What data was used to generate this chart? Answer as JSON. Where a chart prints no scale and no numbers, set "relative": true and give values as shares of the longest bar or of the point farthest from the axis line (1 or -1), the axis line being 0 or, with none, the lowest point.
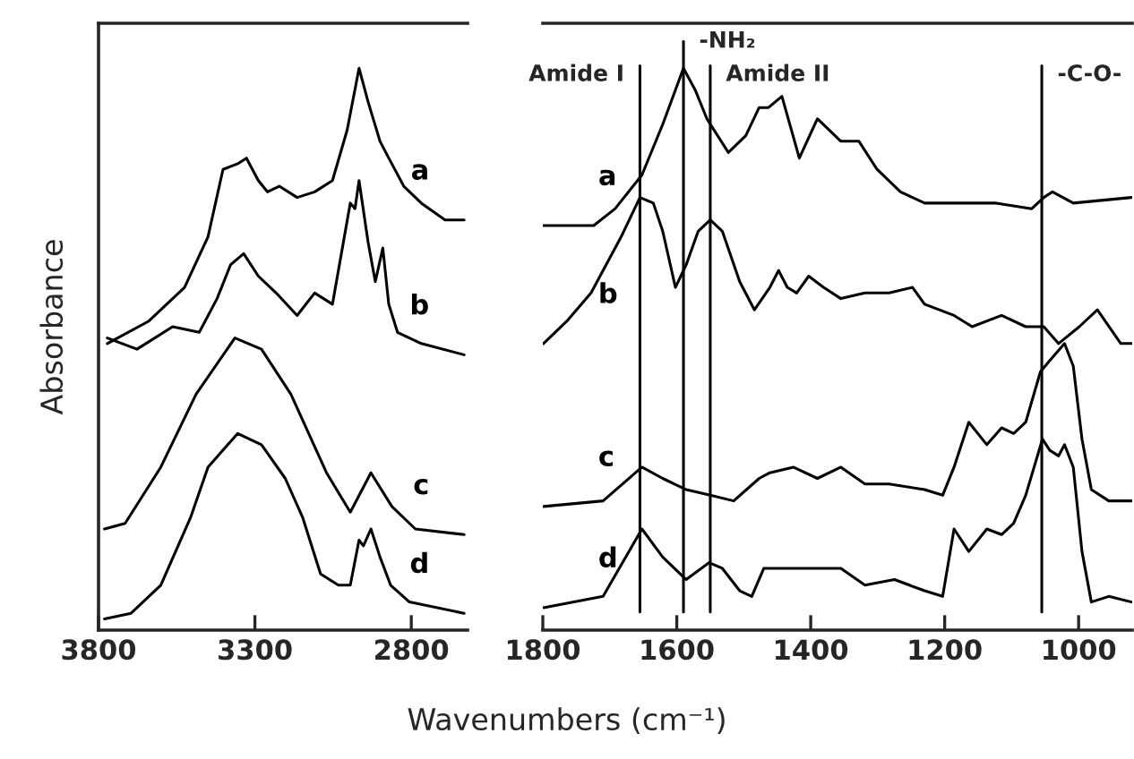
{
  "chart_data": [
    {
      "type": "line",
      "relative": true,
      "ylabel": "Absorbance",
      "xlabel": "Wavenumbers (cm⁻¹)",
      "xlim": [
        3800,
        2620
      ],
      "xticks": [
        3800,
        3300,
        2800
      ],
      "tick_labels": "x",
      "grid": false,
      "legend": false,
      "marker": "none",
      "line_style": "solid",
      "series": [
        {
          "name": "a",
          "color": "#000000",
          "x": [
            3772,
            3639,
            3525,
            3450,
            3402,
            3355,
            3327,
            3289,
            3260,
            3222,
            3165,
            3109,
            3052,
            3005,
            2967,
            2938,
            2900,
            2872,
            2824,
            2768,
            2692,
            2631
          ],
          "values": [
            0.51,
            0.55,
            0.61,
            0.7,
            0.82,
            0.83,
            0.84,
            0.8,
            0.78,
            0.79,
            0.77,
            0.78,
            0.8,
            0.89,
            1.0,
            0.94,
            0.87,
            0.84,
            0.79,
            0.76,
            0.73,
            0.73
          ]
        },
        {
          "name": "b",
          "color": "#000000",
          "x": [
            3772,
            3677,
            3563,
            3478,
            3421,
            3378,
            3336,
            3289,
            3232,
            3165,
            3109,
            3052,
            3014,
            2995,
            2980,
            2967,
            2938,
            2915,
            2891,
            2872,
            2844,
            2768,
            2631
          ],
          "values": [
            0.52,
            0.5,
            0.54,
            0.53,
            0.59,
            0.65,
            0.67,
            0.63,
            0.6,
            0.56,
            0.6,
            0.58,
            0.7,
            0.76,
            0.75,
            0.8,
            0.69,
            0.62,
            0.68,
            0.58,
            0.53,
            0.51,
            0.49
          ]
        },
        {
          "name": "c",
          "color": "#000000",
          "x": [
            3781,
            3715,
            3601,
            3488,
            3364,
            3279,
            3185,
            3071,
            2995,
            2929,
            2862,
            2787,
            2631
          ],
          "values": [
            0.18,
            0.19,
            0.29,
            0.42,
            0.52,
            0.5,
            0.42,
            0.28,
            0.21,
            0.28,
            0.22,
            0.18,
            0.17
          ]
        },
        {
          "name": "d",
          "color": "#000000",
          "x": [
            3781,
            3696,
            3601,
            3506,
            3450,
            3355,
            3279,
            3203,
            3147,
            3090,
            3033,
            2995,
            2967,
            2953,
            2929,
            2900,
            2866,
            2806,
            2631
          ],
          "values": [
            0.02,
            0.03,
            0.08,
            0.2,
            0.29,
            0.35,
            0.33,
            0.27,
            0.2,
            0.1,
            0.08,
            0.08,
            0.16,
            0.15,
            0.18,
            0.13,
            0.08,
            0.05,
            0.03
          ]
        }
      ]
    },
    {
      "type": "line",
      "relative": true,
      "xlim": [
        1800,
        920
      ],
      "xticks": [
        1800,
        1600,
        1400,
        1200,
        1000
      ],
      "tick_labels": "x",
      "grid": false,
      "legend": false,
      "marker": "none",
      "line_style": "solid",
      "ref_lines": [
        {
          "axis": "x",
          "value": 1655,
          "label": "Amide I",
          "color": "#000000"
        },
        {
          "axis": "x",
          "value": 1590,
          "label": "-NH₂",
          "color": "#000000"
        },
        {
          "axis": "x",
          "value": 1550,
          "label": "Amide II",
          "color": "#000000"
        },
        {
          "axis": "x",
          "value": 1055,
          "label": "-C-O-",
          "color": "#000000"
        }
      ],
      "series": [
        {
          "name": "a",
          "color": "#000000",
          "x": [
            1799,
            1724,
            1692,
            1652,
            1621,
            1590,
            1572,
            1555,
            1523,
            1497,
            1477,
            1463,
            1443,
            1417,
            1390,
            1355,
            1328,
            1301,
            1266,
            1230,
            1177,
            1123,
            1070,
            1052,
            1039,
            1008,
            921
          ],
          "values": [
            0.72,
            0.72,
            0.75,
            0.81,
            0.9,
            1.0,
            0.96,
            0.91,
            0.85,
            0.88,
            0.93,
            0.93,
            0.95,
            0.84,
            0.91,
            0.87,
            0.87,
            0.82,
            0.78,
            0.76,
            0.76,
            0.76,
            0.75,
            0.77,
            0.78,
            0.76,
            0.77
          ]
        },
        {
          "name": "b",
          "color": "#000000",
          "x": [
            1799,
            1764,
            1728,
            1683,
            1655,
            1635,
            1621,
            1602,
            1586,
            1568,
            1550,
            1532,
            1506,
            1484,
            1461,
            1448,
            1435,
            1421,
            1403,
            1381,
            1355,
            1319,
            1283,
            1248,
            1230,
            1186,
            1159,
            1115,
            1079,
            1052,
            1030,
            999,
            972,
            937,
            921
          ],
          "values": [
            0.51,
            0.55,
            0.6,
            0.7,
            0.77,
            0.76,
            0.71,
            0.61,
            0.65,
            0.71,
            0.73,
            0.71,
            0.62,
            0.57,
            0.61,
            0.64,
            0.61,
            0.6,
            0.63,
            0.61,
            0.59,
            0.6,
            0.6,
            0.61,
            0.58,
            0.56,
            0.54,
            0.56,
            0.54,
            0.54,
            0.51,
            0.54,
            0.57,
            0.51,
            0.51
          ]
        },
        {
          "name": "c",
          "color": "#000000",
          "x": [
            1799,
            1710,
            1652,
            1621,
            1586,
            1550,
            1515,
            1477,
            1461,
            1426,
            1390,
            1355,
            1319,
            1283,
            1230,
            1203,
            1186,
            1164,
            1137,
            1115,
            1097,
            1079,
            1057,
            1043,
            1021,
            1008,
            995,
            981,
            955,
            921
          ],
          "values": [
            0.22,
            0.23,
            0.29,
            0.27,
            0.25,
            0.24,
            0.23,
            0.27,
            0.28,
            0.29,
            0.27,
            0.29,
            0.26,
            0.26,
            0.25,
            0.24,
            0.29,
            0.37,
            0.33,
            0.36,
            0.35,
            0.37,
            0.46,
            0.48,
            0.51,
            0.47,
            0.34,
            0.25,
            0.23,
            0.23
          ]
        },
        {
          "name": "d",
          "color": "#000000",
          "x": [
            1799,
            1710,
            1652,
            1621,
            1586,
            1552,
            1532,
            1506,
            1488,
            1470,
            1426,
            1390,
            1355,
            1319,
            1275,
            1230,
            1203,
            1186,
            1164,
            1137,
            1115,
            1097,
            1079,
            1054,
            1043,
            1030,
            1021,
            1008,
            995,
            981,
            955,
            921
          ],
          "values": [
            0.04,
            0.06,
            0.18,
            0.13,
            0.09,
            0.12,
            0.11,
            0.07,
            0.06,
            0.11,
            0.11,
            0.11,
            0.11,
            0.08,
            0.09,
            0.07,
            0.06,
            0.18,
            0.14,
            0.18,
            0.17,
            0.19,
            0.24,
            0.34,
            0.32,
            0.31,
            0.33,
            0.29,
            0.14,
            0.05,
            0.06,
            0.05
          ]
        }
      ]
    }
  ]
}
